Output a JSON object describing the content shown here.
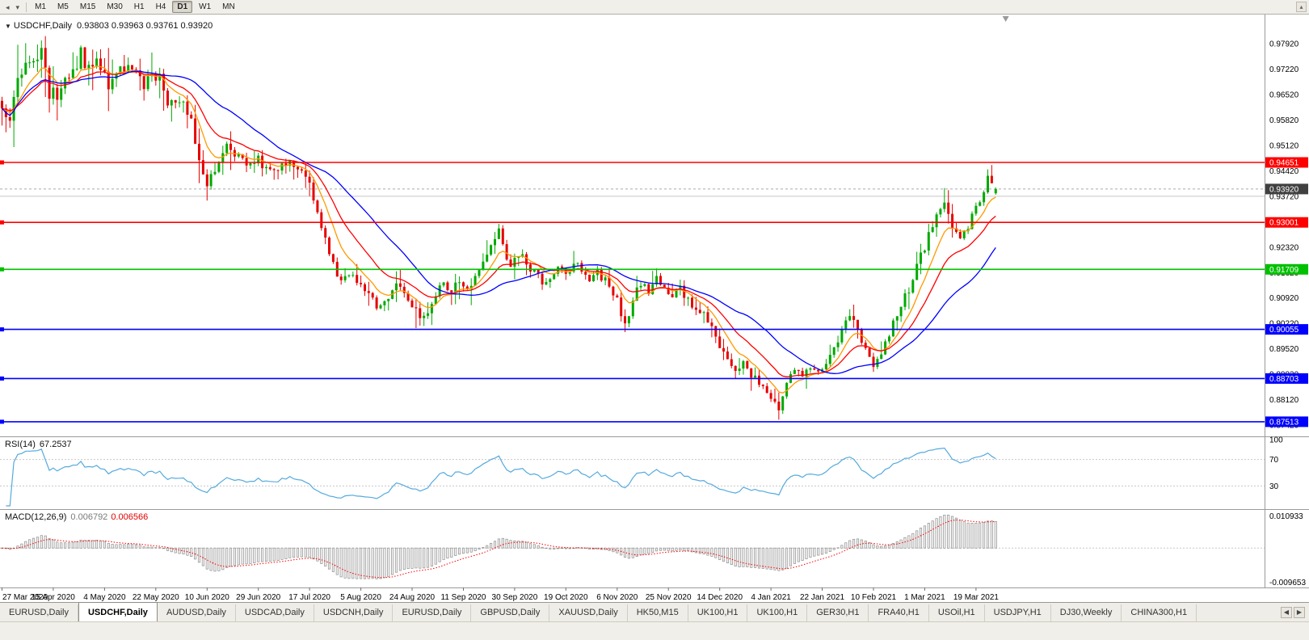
{
  "icons": {
    "cursor": "◂",
    "caret": "▾",
    "corner": "▴",
    "collapse": "▼",
    "tab_scroll_left": "◀",
    "tab_scroll_right": "▶"
  },
  "toolbar": {
    "timeframes": [
      "M1",
      "M5",
      "M15",
      "M30",
      "H1",
      "H4",
      "D1",
      "W1",
      "MN"
    ],
    "active_timeframe": "D1"
  },
  "chart": {
    "header": {
      "symbol": "USDCHF,Daily",
      "values": "0.93803 0.93963 0.93761 0.93920"
    }
  },
  "chart_data": {
    "type": "candlestick",
    "symbol": "USDCHF",
    "timeframe": "Daily",
    "current_ohlc": {
      "open": 0.93803,
      "high": 0.93963,
      "low": 0.93761,
      "close": 0.9392
    },
    "price_max": 0.98721,
    "price_min": 0.87111,
    "num_bars": 253,
    "bar_spacing": 4.88,
    "seed": 9,
    "close_noise": 0.0013,
    "wick_noise": 0.0045,
    "axis_prices": [
      0.9792,
      0.9722,
      0.9652,
      0.9582,
      0.9512,
      0.9442,
      0.9372,
      0.9302,
      0.9232,
      0.9162,
      0.9092,
      0.9022,
      0.8952,
      0.8882,
      0.8812,
      0.8742
    ],
    "horizontal_lines": [
      {
        "price": 0.94651,
        "label": "0.94651",
        "color": "#FF0000"
      },
      {
        "price": 0.93001,
        "label": "0.93001",
        "color": "#FF0000"
      },
      {
        "price": 0.91709,
        "label": "0.91709",
        "color": "#00C000"
      },
      {
        "price": 0.90055,
        "label": "0.90055",
        "color": "#0000FF"
      },
      {
        "price": 0.88703,
        "label": "0.88703",
        "color": "#0000FF"
      },
      {
        "price": 0.87513,
        "label": "0.87513",
        "color": "#0000FF"
      },
      {
        "price": 0.9372,
        "label": "",
        "color": "#C8C8C8",
        "minor": true
      }
    ],
    "current_price": {
      "value": 0.9392,
      "label": "0.93920",
      "box_color": "#404040"
    },
    "candle_colors": {
      "up": "#00A900",
      "down": "#E60000"
    },
    "moving_averages": [
      {
        "type": "ema",
        "period": 8,
        "color": "#FF9900"
      },
      {
        "type": "ema",
        "period": 17,
        "color": "#FF0000"
      },
      {
        "type": "sma",
        "period": 30,
        "color": "#0000FF"
      }
    ],
    "date_step": 13,
    "date_labels": [
      "27 Mar 2020",
      "15 Apr 2020",
      "4 May 2020",
      "22 May 2020",
      "10 Jun 2020",
      "29 Jun 2020",
      "17 Jul 2020",
      "5 Aug 2020",
      "24 Aug 2020",
      "11 Sep 2020",
      "30 Sep 2020",
      "19 Oct 2020",
      "6 Nov 2020",
      "25 Nov 2020",
      "14 Dec 2020",
      "4 Jan 2021",
      "22 Jan 2021",
      "10 Feb 2021",
      "1 Mar 2021",
      "19 Mar 2021"
    ],
    "anchors": [
      [
        0,
        0.963
      ],
      [
        2,
        0.9575
      ],
      [
        4,
        0.97
      ],
      [
        6,
        0.9762
      ],
      [
        8,
        0.972
      ],
      [
        10,
        0.9772
      ],
      [
        12,
        0.9665
      ],
      [
        14,
        0.9628
      ],
      [
        16,
        0.968
      ],
      [
        18,
        0.9712
      ],
      [
        20,
        0.9762
      ],
      [
        22,
        0.9718
      ],
      [
        24,
        0.9752
      ],
      [
        26,
        0.97
      ],
      [
        28,
        0.9678
      ],
      [
        30,
        0.9712
      ],
      [
        32,
        0.9726
      ],
      [
        34,
        0.97
      ],
      [
        36,
        0.9682
      ],
      [
        38,
        0.9716
      ],
      [
        40,
        0.97
      ],
      [
        42,
        0.964
      ],
      [
        44,
        0.9614
      ],
      [
        46,
        0.9626
      ],
      [
        48,
        0.957
      ],
      [
        50,
        0.9478
      ],
      [
        52,
        0.9398
      ],
      [
        53,
        0.9422
      ],
      [
        55,
        0.947
      ],
      [
        57,
        0.9512
      ],
      [
        59,
        0.9482
      ],
      [
        62,
        0.946
      ],
      [
        65,
        0.9476
      ],
      [
        68,
        0.944
      ],
      [
        71,
        0.9452
      ],
      [
        74,
        0.9466
      ],
      [
        76,
        0.943
      ],
      [
        78,
        0.9396
      ],
      [
        80,
        0.933
      ],
      [
        82,
        0.925
      ],
      [
        84,
        0.918
      ],
      [
        86,
        0.9146
      ],
      [
        88,
        0.9166
      ],
      [
        90,
        0.913
      ],
      [
        92,
        0.9112
      ],
      [
        94,
        0.9086
      ],
      [
        96,
        0.906
      ],
      [
        98,
        0.9092
      ],
      [
        100,
        0.9136
      ],
      [
        102,
        0.9112
      ],
      [
        104,
        0.9076
      ],
      [
        106,
        0.9042
      ],
      [
        108,
        0.9062
      ],
      [
        110,
        0.9102
      ],
      [
        112,
        0.9126
      ],
      [
        114,
        0.9106
      ],
      [
        116,
        0.9142
      ],
      [
        118,
        0.9122
      ],
      [
        120,
        0.9156
      ],
      [
        122,
        0.9192
      ],
      [
        124,
        0.9236
      ],
      [
        126,
        0.9272
      ],
      [
        127,
        0.9226
      ],
      [
        129,
        0.9192
      ],
      [
        131,
        0.9216
      ],
      [
        133,
        0.9182
      ],
      [
        135,
        0.9162
      ],
      [
        137,
        0.9136
      ],
      [
        139,
        0.9156
      ],
      [
        141,
        0.9182
      ],
      [
        143,
        0.9162
      ],
      [
        145,
        0.9186
      ],
      [
        147,
        0.9166
      ],
      [
        149,
        0.9136
      ],
      [
        151,
        0.9162
      ],
      [
        153,
        0.9142
      ],
      [
        155,
        0.9112
      ],
      [
        157,
        0.9052
      ],
      [
        158,
        0.9016
      ],
      [
        160,
        0.9086
      ],
      [
        162,
        0.9132
      ],
      [
        164,
        0.9112
      ],
      [
        166,
        0.9146
      ],
      [
        168,
        0.9122
      ],
      [
        170,
        0.9096
      ],
      [
        172,
        0.9116
      ],
      [
        174,
        0.9086
      ],
      [
        176,
        0.9062
      ],
      [
        178,
        0.9042
      ],
      [
        180,
        0.9012
      ],
      [
        182,
        0.8962
      ],
      [
        184,
        0.8922
      ],
      [
        186,
        0.8892
      ],
      [
        188,
        0.8912
      ],
      [
        190,
        0.8882
      ],
      [
        192,
        0.8856
      ],
      [
        194,
        0.8836
      ],
      [
        196,
        0.8802
      ],
      [
        197,
        0.8792
      ],
      [
        199,
        0.8852
      ],
      [
        201,
        0.8896
      ],
      [
        203,
        0.8882
      ],
      [
        205,
        0.8902
      ],
      [
        207,
        0.8886
      ],
      [
        209,
        0.8922
      ],
      [
        211,
        0.8956
      ],
      [
        213,
        0.9002
      ],
      [
        215,
        0.904
      ],
      [
        217,
        0.9002
      ],
      [
        219,
        0.8952
      ],
      [
        221,
        0.8902
      ],
      [
        223,
        0.8942
      ],
      [
        225,
        0.8992
      ],
      [
        227,
        0.9042
      ],
      [
        229,
        0.9092
      ],
      [
        231,
        0.9142
      ],
      [
        233,
        0.9202
      ],
      [
        235,
        0.9262
      ],
      [
        237,
        0.9322
      ],
      [
        239,
        0.9366
      ],
      [
        241,
        0.9292
      ],
      [
        243,
        0.9252
      ],
      [
        245,
        0.9292
      ],
      [
        247,
        0.9342
      ],
      [
        249,
        0.9392
      ],
      [
        250,
        0.9426
      ],
      [
        251,
        0.94
      ],
      [
        252,
        0.9392
      ]
    ],
    "volatility_anchors": [
      [
        0,
        2.1
      ],
      [
        20,
        1.9
      ],
      [
        40,
        1.5
      ],
      [
        55,
        1.6
      ],
      [
        70,
        1.1
      ],
      [
        95,
        1.0
      ],
      [
        125,
        1.1
      ],
      [
        160,
        1.0
      ],
      [
        190,
        0.9
      ],
      [
        215,
        0.9
      ],
      [
        235,
        1.2
      ],
      [
        252,
        0.8
      ]
    ],
    "special_highs": [
      [
        4,
        0.9789
      ],
      [
        10,
        0.9801
      ],
      [
        20,
        0.9787
      ],
      [
        126,
        0.9296
      ],
      [
        239,
        0.9374
      ],
      [
        250,
        0.9446
      ]
    ],
    "special_lows": [
      [
        52,
        0.9376
      ],
      [
        105,
        0.9009
      ],
      [
        158,
        0.9006
      ],
      [
        197,
        0.8757
      ],
      [
        221,
        0.8889
      ]
    ]
  },
  "rsi": {
    "label": "RSI(14)",
    "value": "67.2537",
    "period": 14,
    "line_color": "#55AADD",
    "axis_labels": [
      100,
      70,
      30
    ],
    "dashed_levels": [
      70,
      30
    ]
  },
  "macd": {
    "label": "MACD(12,26,9)",
    "value_main": "0.006792",
    "value_signal": "0.006566",
    "fast": 12,
    "slow": 26,
    "signal": 9,
    "signal_color": "#FF0000",
    "histogram_stroke": "#8E8E8E",
    "max_label": "0.010933",
    "min_label": "-0.009653"
  },
  "tabs": {
    "active_index": 1,
    "items": [
      "EURUSD,Daily",
      "USDCHF,Daily",
      "AUDUSD,Daily",
      "USDCAD,Daily",
      "USDCNH,Daily",
      "EURUSD,Daily",
      "GBPUSD,Daily",
      "XAUUSD,Daily",
      "HK50,M15",
      "UK100,H1",
      "UK100,H1",
      "GER30,H1",
      "FRA40,H1",
      "USOil,H1",
      "USDJPY,H1",
      "DJ30,Weekly",
      "CHINA300,H1"
    ]
  }
}
